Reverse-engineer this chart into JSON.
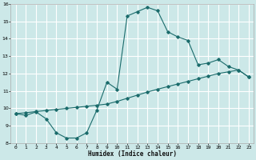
{
  "xlabel": "Humidex (Indice chaleur)",
  "bg_color": "#cce8e8",
  "grid_color": "#ffffff",
  "line_color": "#1a6b6b",
  "xlim": [
    -0.5,
    23.5
  ],
  "ylim": [
    8,
    16
  ],
  "xticks": [
    0,
    1,
    2,
    3,
    4,
    5,
    6,
    7,
    8,
    9,
    10,
    11,
    12,
    13,
    14,
    15,
    16,
    17,
    18,
    19,
    20,
    21,
    22,
    23
  ],
  "yticks": [
    8,
    9,
    10,
    11,
    12,
    13,
    14,
    15,
    16
  ],
  "curve1_x": [
    0,
    1,
    2,
    3,
    4,
    5,
    6,
    7,
    8,
    9,
    10,
    11,
    12,
    13,
    14,
    15,
    16,
    17,
    18,
    19,
    20,
    21,
    22,
    23
  ],
  "curve1_y": [
    9.7,
    9.6,
    9.8,
    9.4,
    8.6,
    8.3,
    8.3,
    8.6,
    9.9,
    11.5,
    11.1,
    15.3,
    15.55,
    15.8,
    15.6,
    14.4,
    14.1,
    13.9,
    12.5,
    12.6,
    12.8,
    12.4,
    12.2,
    11.8
  ],
  "curve2_x": [
    0,
    1,
    2,
    3,
    4,
    5,
    6,
    7,
    8,
    9,
    10,
    11,
    12,
    13,
    14,
    15,
    16,
    17,
    18,
    19,
    20,
    21,
    22,
    23
  ],
  "curve2_y": [
    9.7,
    9.75,
    9.82,
    9.88,
    9.94,
    10.0,
    10.06,
    10.12,
    10.18,
    10.25,
    10.4,
    10.58,
    10.76,
    10.94,
    11.1,
    11.25,
    11.4,
    11.55,
    11.7,
    11.85,
    12.0,
    12.1,
    12.2,
    11.8
  ]
}
